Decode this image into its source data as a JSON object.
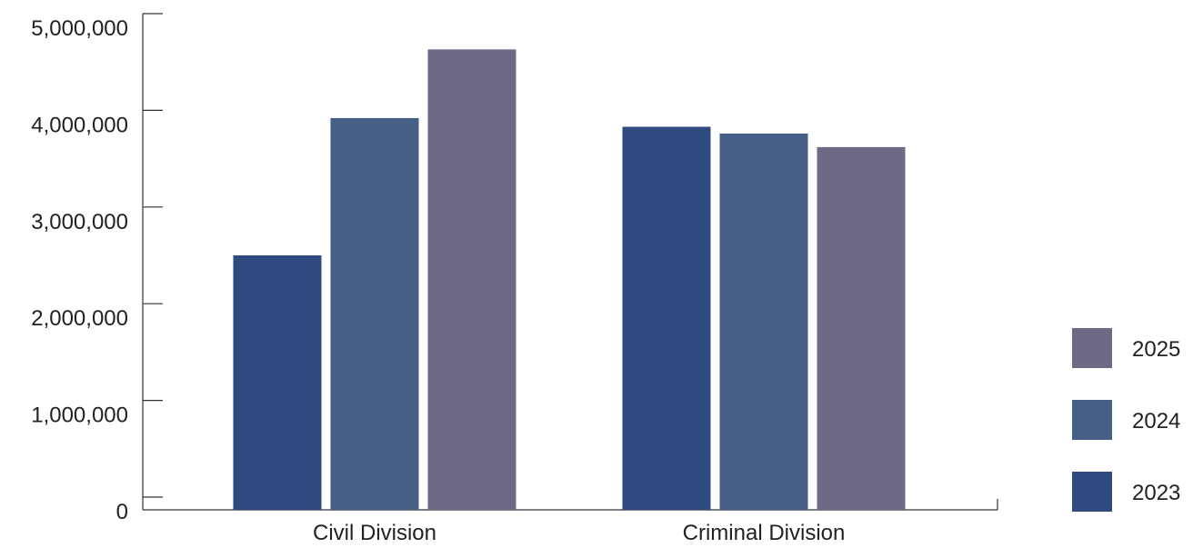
{
  "chart_data": {
    "type": "bar",
    "title": "",
    "xlabel": "",
    "ylabel": "",
    "categories": [
      "Civil Division",
      "Criminal Division"
    ],
    "series": [
      {
        "name": "2023",
        "color": "#2e4a7e",
        "values": [
          2500000,
          3830000
        ]
      },
      {
        "name": "2024",
        "color": "#465f86",
        "values": [
          3920000,
          3760000
        ]
      },
      {
        "name": "2025",
        "color": "#6e6a86",
        "values": [
          4630000,
          3620000
        ]
      }
    ],
    "ylim": [
      0,
      5000000
    ],
    "yticks": [
      0,
      1000000,
      2000000,
      3000000,
      4000000,
      5000000
    ],
    "ytick_labels": [
      "0",
      "1,000,000",
      "2,000,000",
      "3,000,000",
      "4,000,000",
      "5,000,000"
    ],
    "legend_position": "right",
    "legend_order": [
      "2025",
      "2024",
      "2023"
    ],
    "grid": false
  }
}
